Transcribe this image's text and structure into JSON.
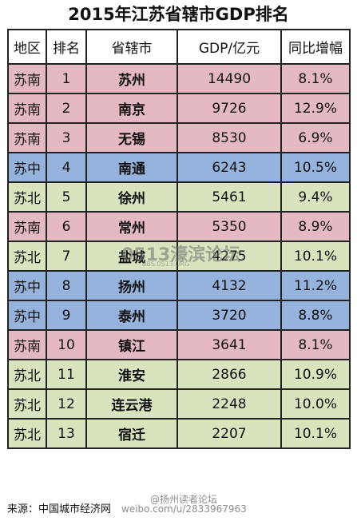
{
  "title": "2015年江苏省辖市GDP排名",
  "headers": [
    "地区",
    "排名",
    "省辖市",
    "GDP/亿元",
    "同比增幅"
  ],
  "colors": {
    "苏南": "#e5b9c2",
    "苏中": "#95b3dc",
    "苏北": "#d7e4bd"
  },
  "rows": [
    {
      "region": "苏南",
      "rank": "1",
      "city": "苏州",
      "gdp": "14490",
      "growth": "8.1%"
    },
    {
      "region": "苏南",
      "rank": "2",
      "city": "南京",
      "gdp": "9726",
      "growth": "12.9%"
    },
    {
      "region": "苏南",
      "rank": "3",
      "city": "无锡",
      "gdp": "8530",
      "growth": "6.9%"
    },
    {
      "region": "苏中",
      "rank": "4",
      "city": "南通",
      "gdp": "6243",
      "growth": "10.5%"
    },
    {
      "region": "苏北",
      "rank": "5",
      "city": "徐州",
      "gdp": "5461",
      "growth": "9.4%"
    },
    {
      "region": "苏南",
      "rank": "6",
      "city": "常州",
      "gdp": "5350",
      "growth": "8.9%"
    },
    {
      "region": "苏北",
      "rank": "7",
      "city": "盐城",
      "gdp": "4275",
      "growth": "10.1%"
    },
    {
      "region": "苏中",
      "rank": "8",
      "city": "扬州",
      "gdp": "4132",
      "growth": "11.2%"
    },
    {
      "region": "苏中",
      "rank": "9",
      "city": "泰州",
      "gdp": "3720",
      "growth": "8.8%"
    },
    {
      "region": "苏南",
      "rank": "10",
      "city": "镇江",
      "gdp": "3641",
      "growth": "8.1%"
    },
    {
      "region": "苏北",
      "rank": "11",
      "city": "淮安",
      "gdp": "2866",
      "growth": "10.9%"
    },
    {
      "region": "苏北",
      "rank": "12",
      "city": "连云港",
      "gdp": "2248",
      "growth": "10.0%"
    },
    {
      "region": "苏北",
      "rank": "13",
      "city": "宿迁",
      "gdp": "2207",
      "growth": "10.1%"
    }
  ],
  "footer": "来源：中国城市经济网",
  "watermarks": {
    "logo": "0513濠滨论坛",
    "site": "BBS.0513.ORG",
    "weibo": "weibo.com/u/2833967963",
    "tag": "@扬州读者论坛"
  }
}
